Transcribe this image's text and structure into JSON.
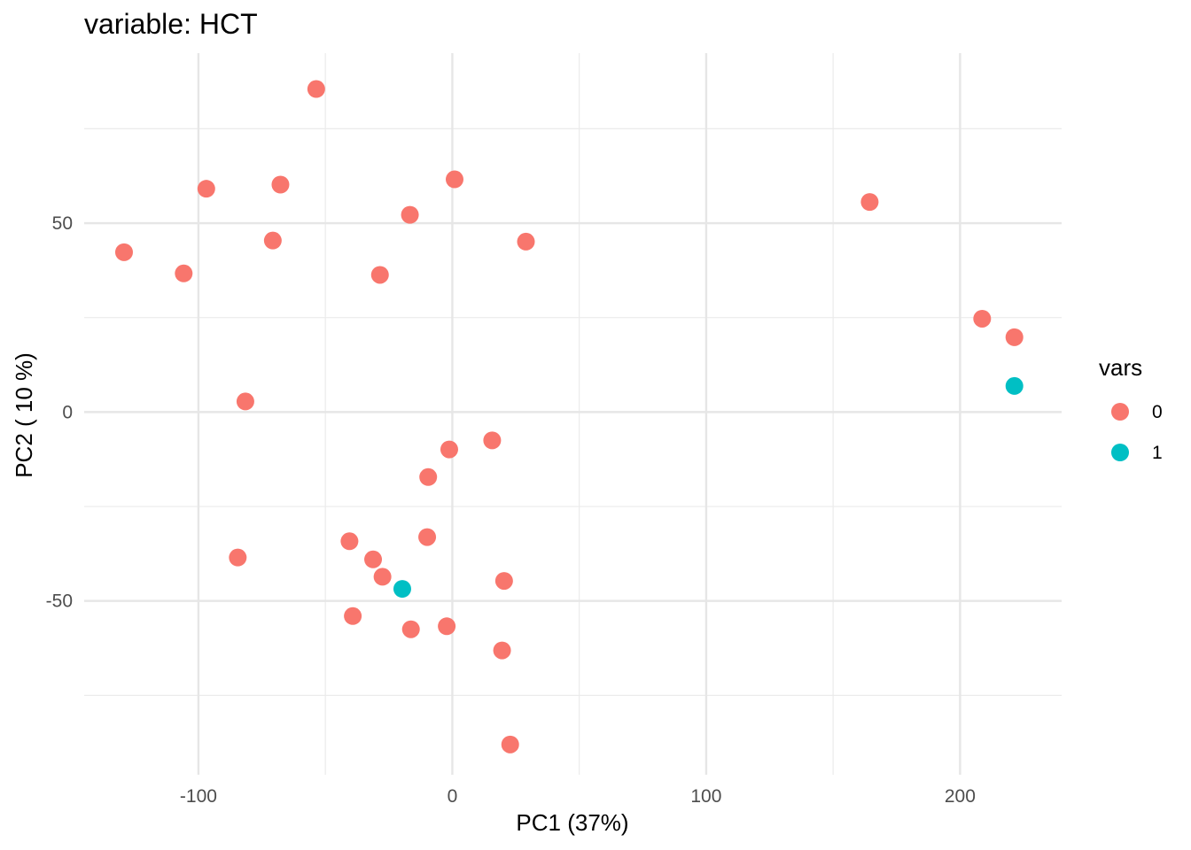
{
  "chart_data": {
    "type": "scatter",
    "title": "variable: HCT",
    "xlabel": "PC1 (37%)",
    "ylabel": "PC2 ( 10 %)",
    "xlim": [
      -145,
      240
    ],
    "ylim": [
      -96,
      95
    ],
    "x_ticks": [
      -100,
      0,
      100,
      200
    ],
    "x_tick_labels": [
      "-100",
      "0",
      "100",
      "200"
    ],
    "x_minor_ticks": [
      -50,
      50,
      150
    ],
    "y_ticks": [
      -50,
      0,
      50
    ],
    "y_tick_labels": [
      "-50",
      "0",
      "50"
    ],
    "y_minor_ticks": [
      -75,
      -25,
      25,
      75
    ],
    "grid": true,
    "legend": {
      "title": "vars",
      "position": "right",
      "entries": [
        {
          "label": "0",
          "color": "#F8766D"
        },
        {
          "label": "1",
          "color": "#00BFC4"
        }
      ]
    },
    "series": [
      {
        "name": "0",
        "color": "#F8766D",
        "x": [
          -53.6,
          -67.7,
          -96.9,
          -129.3,
          -105.8,
          -70.7,
          0.9,
          -16.7,
          -28.5,
          29.0,
          164.4,
          208.7,
          221.4,
          -81.5,
          15.7,
          -1.2,
          -9.5,
          -84.5,
          -40.5,
          -31.2,
          -27.5,
          -9.9,
          20.4,
          -39.2,
          -16.3,
          -2.2,
          19.6,
          22.8
        ],
        "y": [
          85.5,
          60.2,
          59.1,
          42.3,
          36.7,
          45.4,
          61.6,
          52.2,
          36.3,
          45.1,
          55.6,
          24.7,
          19.8,
          2.8,
          -7.5,
          -9.9,
          -17.2,
          -38.5,
          -34.2,
          -39.0,
          -43.6,
          -33.1,
          -44.7,
          -54.0,
          -57.5,
          -56.7,
          -63.1,
          -88.0
        ]
      },
      {
        "name": "1",
        "color": "#00BFC4",
        "x": [
          -19.7,
          221.4
        ],
        "y": [
          -46.8,
          6.9
        ]
      }
    ]
  }
}
